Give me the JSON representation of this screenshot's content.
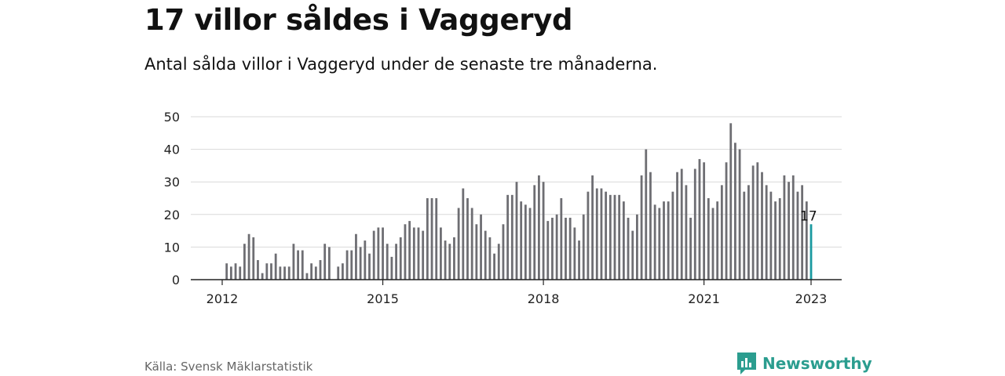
{
  "header": {
    "title": "17 villor såldes i Vaggeryd",
    "subtitle": "Antal sålda villor i Vaggeryd under de senaste tre månaderna."
  },
  "footer": {
    "source": "Källa: Svensk Mäklarstatistik",
    "brand_name": "Newsworthy"
  },
  "colors": {
    "bar": "#6e6e73",
    "highlight": "#1a9aa0",
    "brand": "#2b9d8f",
    "grid": "#d9d9d9",
    "axis": "#222222"
  },
  "icons": {
    "brand_logo": "bar-chart-speech-bubble-icon"
  },
  "chart_data": {
    "type": "bar",
    "title": "17 villor såldes i Vaggeryd",
    "subtitle": "Antal sålda villor i Vaggeryd under de senaste tre månaderna.",
    "x_start": "2012-01",
    "x_end": "2023-01",
    "x_ticks": [
      "2012",
      "2015",
      "2018",
      "2021",
      "2023"
    ],
    "y_ticks": [
      0,
      10,
      20,
      30,
      40,
      50
    ],
    "ylim": [
      0,
      50
    ],
    "grid": true,
    "legend": "none",
    "series": [
      {
        "values": [
          0,
          5,
          4,
          5,
          4,
          11,
          14,
          13,
          6,
          2,
          5,
          5,
          8,
          4,
          4,
          4,
          11,
          9,
          9,
          2,
          5,
          4,
          6,
          11,
          10,
          0,
          4,
          5,
          9,
          9,
          14,
          10,
          12,
          8,
          15,
          16,
          16,
          11,
          7,
          11,
          13,
          17,
          18,
          16,
          16,
          15,
          25,
          25,
          25,
          16,
          12,
          11,
          13,
          22,
          28,
          25,
          22,
          17,
          20,
          15,
          13,
          8,
          11,
          17,
          26,
          26,
          30,
          24,
          23,
          22,
          29,
          32,
          30,
          18,
          19,
          20,
          25,
          19,
          19,
          16,
          12,
          20,
          27,
          32,
          28,
          28,
          27,
          26,
          26,
          26,
          24,
          19,
          15,
          20,
          32,
          40,
          33,
          23,
          22,
          24,
          24,
          27,
          33,
          34,
          29,
          19,
          34,
          37,
          36,
          25,
          22,
          24,
          29,
          36,
          48,
          42,
          40,
          27,
          29,
          35,
          36,
          33,
          29,
          27,
          24,
          25,
          32,
          30,
          32,
          27,
          29,
          24,
          17
        ],
        "highlight_last_value": 17
      }
    ],
    "last_value_label": "17"
  }
}
